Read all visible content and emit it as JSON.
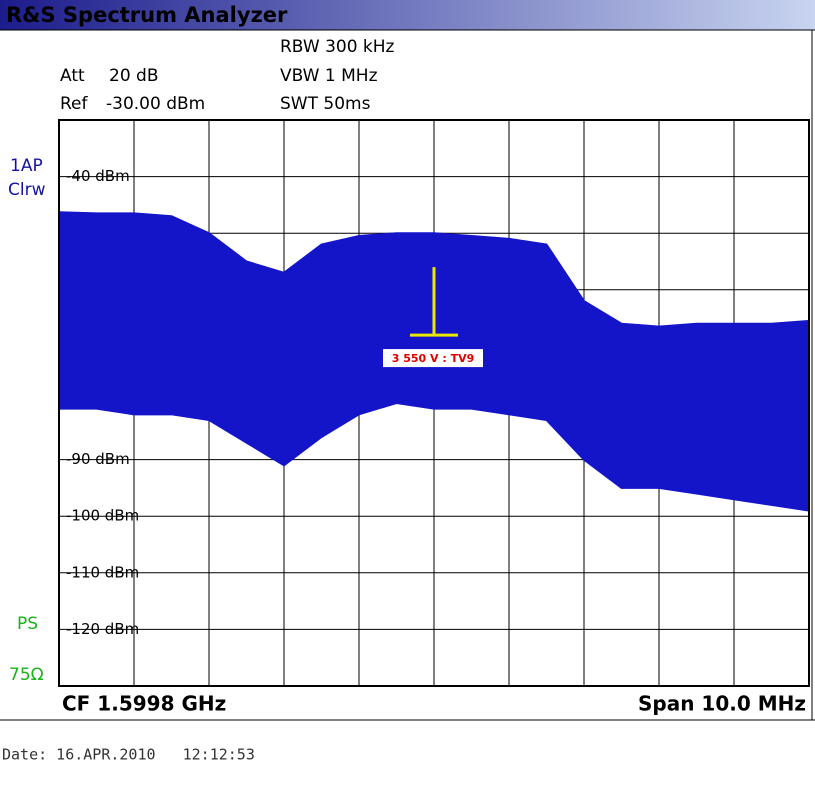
{
  "header": {
    "title": "R&S Spectrum Analyzer"
  },
  "settings": {
    "att_label": "Att",
    "att": "20 dB",
    "ref_label": "Ref",
    "ref": "-30.00 dBm",
    "rbw": "RBW 300 kHz",
    "vbw": "VBW 1 MHz",
    "swt": "SWT 50ms"
  },
  "side": {
    "trace": "1AP",
    "mode": "Clrw",
    "ps": "PS",
    "impedance": "75Ω"
  },
  "chart_data": {
    "type": "band",
    "color": "#1414c8",
    "x": [
      -5,
      -4.5,
      -4,
      -3.5,
      -3,
      -2.5,
      -2,
      -1.5,
      -1,
      -0.5,
      0,
      0.5,
      1,
      1.5,
      2,
      2.5,
      3,
      3.5,
      4,
      4.5,
      5
    ],
    "upper": [
      -46.3,
      -46.5,
      -46.5,
      -47,
      -50,
      -55,
      -57,
      -52,
      -50.5,
      -50,
      -50,
      -50.5,
      -51,
      -52,
      -62,
      -66,
      -66.5,
      -66,
      -66,
      -66,
      -65.5
    ],
    "lower": [
      -81,
      -81,
      -82,
      -82,
      -83,
      -87,
      -91,
      -86,
      -82,
      -80,
      -81,
      -81,
      -82,
      -83,
      -90,
      -95,
      -95,
      -96,
      -97,
      -98,
      -99
    ],
    "xlim": [
      -5,
      5
    ],
    "xgrid": [
      -5,
      -4,
      -3,
      -2,
      -1,
      0,
      1,
      2,
      3,
      4,
      5
    ],
    "ylim": [
      -130,
      -30
    ],
    "ygrid": [
      -30,
      -40,
      -50,
      -60,
      -70,
      -80,
      -90,
      -100,
      -110,
      -120,
      -130
    ],
    "yticks": [
      {
        "value": -40,
        "label": "-40 dBm"
      },
      {
        "value": -90,
        "label": "-90 dBm"
      },
      {
        "value": -100,
        "label": "-100 dBm"
      },
      {
        "value": -110,
        "label": "-110 dBm"
      },
      {
        "value": -120,
        "label": "-120 dBm"
      }
    ],
    "marker": {
      "label": "3 550 V : TV9",
      "x": 0,
      "top": -56,
      "level": -68,
      "color": "#e8e800"
    }
  },
  "footer": {
    "center_freq": "CF 1.5998 GHz",
    "span": "Span 10.0 MHz",
    "date": "Date: 16.APR.2010   12:12:53"
  }
}
